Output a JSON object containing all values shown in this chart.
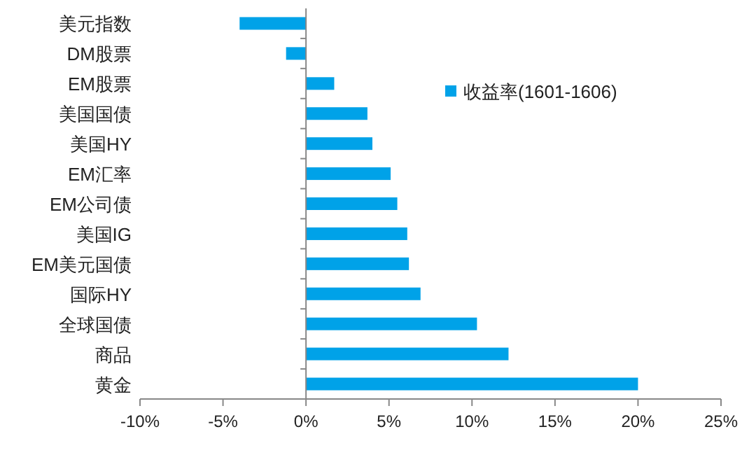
{
  "chart_data": {
    "type": "bar",
    "orientation": "horizontal",
    "categories": [
      "美元指数",
      "DM股票",
      "EM股票",
      "美国国债",
      "美国HY",
      "EM汇率",
      "EM公司债",
      "美国IG",
      "EM美元国债",
      "国际HY",
      "全球国债",
      "商品",
      "黄金"
    ],
    "series": [
      {
        "name": "收益率(1601-1606)",
        "color": "#00a2e8",
        "values": [
          -4.0,
          -1.2,
          1.7,
          3.7,
          4.0,
          5.1,
          5.5,
          6.1,
          6.2,
          6.9,
          10.3,
          12.2,
          20.0
        ]
      }
    ],
    "xlim": [
      -10,
      25
    ],
    "xticks": [
      {
        "value": -10,
        "label": "-10%"
      },
      {
        "value": -5,
        "label": "-5%"
      },
      {
        "value": 0,
        "label": "0%"
      },
      {
        "value": 5,
        "label": "5%"
      },
      {
        "value": 10,
        "label": "10%"
      },
      {
        "value": 15,
        "label": "15%"
      },
      {
        "value": 20,
        "label": "20%"
      },
      {
        "value": 25,
        "label": "25%"
      }
    ],
    "legend": "top right"
  }
}
